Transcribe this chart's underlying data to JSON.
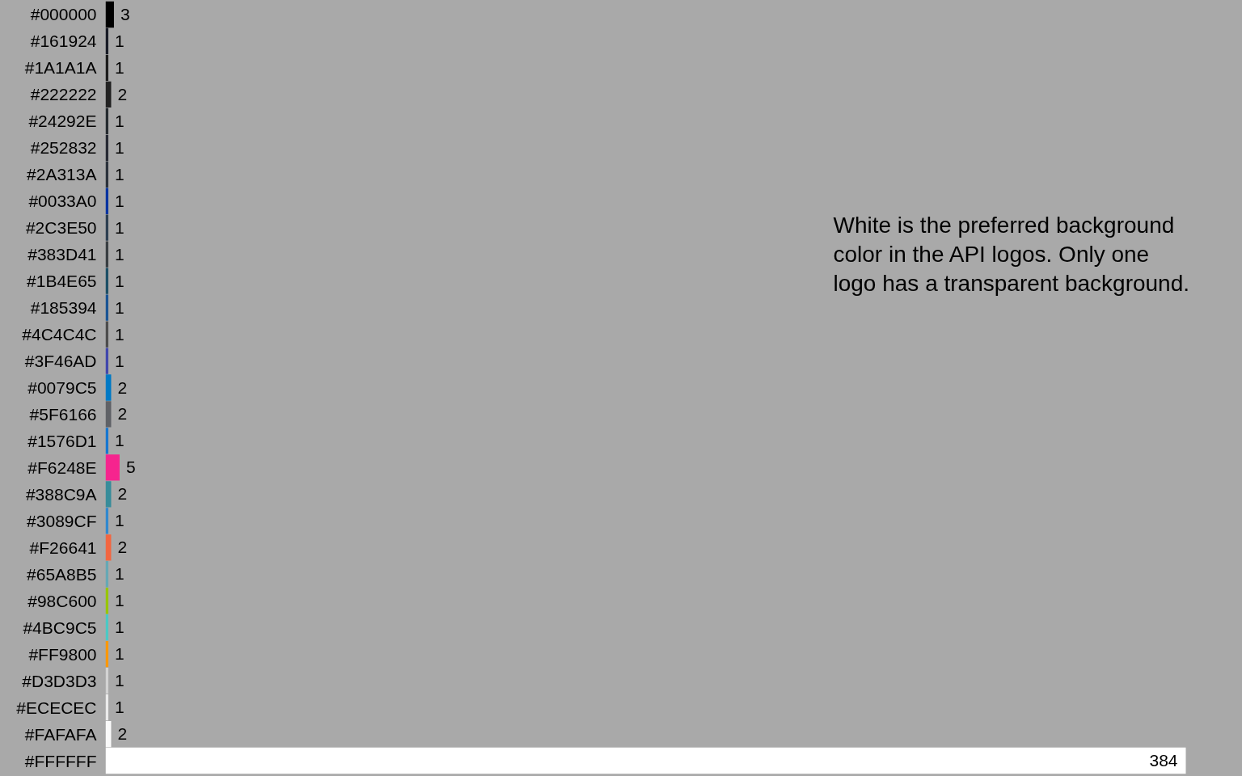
{
  "chart_data": {
    "type": "bar",
    "orientation": "horizontal",
    "data_labels": true,
    "categories": [
      "#000000",
      "#161924",
      "#1A1A1A",
      "#222222",
      "#24292E",
      "#252832",
      "#2A313A",
      "#0033A0",
      "#2C3E50",
      "#383D41",
      "#1B4E65",
      "#185394",
      "#4C4C4C",
      "#3F46AD",
      "#0079C5",
      "#5F6166",
      "#1576D1",
      "#F6248E",
      "#388C9A",
      "#3089CF",
      "#F26641",
      "#65A8B5",
      "#98C600",
      "#4BC9C5",
      "#FF9800",
      "#D3D3D3",
      "#ECECEC",
      "#FAFAFA",
      "#FFFFFF"
    ],
    "values": [
      3,
      1,
      1,
      2,
      1,
      1,
      1,
      1,
      1,
      1,
      1,
      1,
      1,
      1,
      2,
      2,
      1,
      5,
      2,
      1,
      2,
      1,
      1,
      1,
      1,
      1,
      1,
      2,
      384
    ],
    "colors": [
      "#000000",
      "#161924",
      "#1a1a1a",
      "#222222",
      "#24292e",
      "#252832",
      "#2a313a",
      "#0033a0",
      "#2c3e50",
      "#383d41",
      "#1b4e65",
      "#185394",
      "#4c4c4c",
      "#3f46ad",
      "#0079c5",
      "#5f6166",
      "#1576d1",
      "#f6248e",
      "#388c9a",
      "#3089cf",
      "#f26641",
      "#65a8b5",
      "#98c600",
      "#4bc9c5",
      "#ff9800",
      "#d3d3d3",
      "#ececec",
      "#fafafa",
      "#ffffff"
    ],
    "annotations": [
      "White is the preferred background color in the API logos. Only one logo has a transparent background."
    ]
  }
}
